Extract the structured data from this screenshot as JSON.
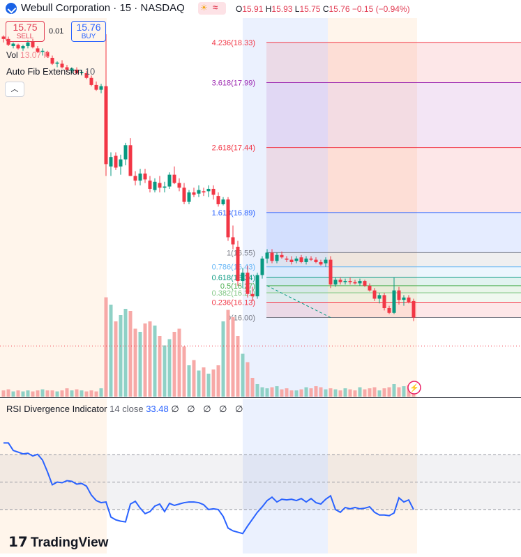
{
  "header": {
    "symbol_title": "Webull Corporation · 15 · NASDAQ",
    "ohlc": {
      "o_label": "O",
      "o_value": "15.91",
      "h_label": "H",
      "h_value": "15.93",
      "l_label": "L",
      "l_value": "15.75",
      "c_label": "C",
      "c_value": "15.76",
      "change": "−0.15 (−0.94%)"
    }
  },
  "trade": {
    "sell_price": "15.75",
    "sell_label": "SELL",
    "spread": "0.01",
    "buy_price": "15.76",
    "buy_label": "BUY"
  },
  "indicators": {
    "vol_label": "Vol",
    "vol_value": "13.07 K",
    "fib_name": "Auto Fib Extension",
    "fib_param": "10",
    "collapse_icon": "chevron-up-icon",
    "rsi_name": "RSI Divergence Indicator",
    "rsi_params": "14 close",
    "rsi_value": "33.48",
    "rsi_extra": "∅ ∅ ∅ ∅ ∅"
  },
  "branding": {
    "text": "TradingView"
  },
  "colors": {
    "up": "#089981",
    "down": "#f23645",
    "rsi": "#2962ff",
    "vol_up": "#8fd1c6",
    "vol_down": "#f7a9a7"
  },
  "chart_data": {
    "type": "candlestick",
    "ylim": [
      15.59,
      18.43
    ],
    "last_price": 15.76,
    "candles": [
      [
        18.38,
        18.39,
        18.33,
        18.36
      ],
      [
        18.36,
        18.38,
        18.3,
        18.31
      ],
      [
        18.3,
        18.33,
        18.28,
        18.32
      ],
      [
        18.31,
        18.32,
        18.27,
        18.28
      ],
      [
        18.28,
        18.31,
        18.26,
        18.3
      ],
      [
        18.3,
        18.35,
        18.28,
        18.33
      ],
      [
        18.34,
        18.36,
        18.28,
        18.29
      ],
      [
        18.28,
        18.3,
        18.24,
        18.25
      ],
      [
        18.25,
        18.28,
        18.22,
        18.26
      ],
      [
        18.25,
        18.26,
        18.2,
        18.21
      ],
      [
        18.2,
        18.22,
        18.14,
        18.15
      ],
      [
        18.15,
        18.17,
        18.12,
        18.16
      ],
      [
        18.15,
        18.18,
        18.11,
        18.12
      ],
      [
        18.12,
        18.14,
        18.08,
        18.1
      ],
      [
        18.09,
        18.12,
        18.07,
        18.11
      ],
      [
        18.1,
        18.12,
        18.06,
        18.07
      ],
      [
        18.07,
        18.1,
        18.05,
        18.08
      ],
      [
        18.07,
        18.09,
        18.02,
        18.03
      ],
      [
        18.03,
        18.05,
        17.96,
        17.97
      ],
      [
        17.97,
        18.0,
        17.92,
        17.93
      ],
      [
        17.93,
        17.98,
        17.9,
        17.96
      ],
      [
        17.96,
        18.4,
        17.2,
        17.3
      ],
      [
        17.28,
        17.4,
        17.2,
        17.36
      ],
      [
        17.37,
        17.4,
        17.25,
        17.27
      ],
      [
        17.28,
        17.38,
        17.21,
        17.34
      ],
      [
        17.34,
        17.48,
        17.29,
        17.46
      ],
      [
        17.46,
        17.52,
        17.2,
        17.2
      ],
      [
        17.2,
        17.24,
        17.12,
        17.16
      ],
      [
        17.16,
        17.26,
        17.12,
        17.22
      ],
      [
        17.22,
        17.26,
        17.14,
        17.17
      ],
      [
        17.16,
        17.2,
        17.06,
        17.09
      ],
      [
        17.08,
        17.18,
        17.06,
        17.15
      ],
      [
        17.14,
        17.2,
        17.06,
        17.1
      ],
      [
        17.1,
        17.15,
        17.06,
        17.11
      ],
      [
        17.11,
        17.23,
        17.09,
        17.21
      ],
      [
        17.21,
        17.28,
        17.13,
        17.14
      ],
      [
        17.14,
        17.18,
        17.07,
        17.1
      ],
      [
        17.1,
        17.14,
        16.96,
        16.98
      ],
      [
        16.98,
        17.08,
        16.96,
        17.06
      ],
      [
        17.06,
        17.1,
        17.02,
        17.04
      ],
      [
        17.05,
        17.12,
        17.02,
        17.08
      ],
      [
        17.07,
        17.1,
        17.03,
        17.06
      ],
      [
        17.07,
        17.12,
        17.02,
        17.09
      ],
      [
        17.09,
        17.12,
        17.0,
        17.04
      ],
      [
        17.03,
        17.06,
        16.94,
        16.96
      ],
      [
        16.96,
        17.02,
        16.95,
        17.0
      ],
      [
        17.0,
        17.02,
        16.65,
        16.68
      ],
      [
        16.68,
        16.78,
        16.58,
        16.62
      ],
      [
        16.6,
        16.65,
        16.27,
        16.31
      ],
      [
        16.31,
        16.42,
        16.25,
        16.38
      ],
      [
        16.38,
        16.44,
        16.17,
        16.2
      ],
      [
        16.2,
        16.26,
        16.14,
        16.18
      ],
      [
        16.18,
        16.38,
        16.16,
        16.36
      ],
      [
        16.36,
        16.52,
        16.33,
        16.5
      ],
      [
        16.5,
        16.58,
        16.46,
        16.55
      ],
      [
        16.55,
        16.58,
        16.46,
        16.48
      ],
      [
        16.48,
        16.55,
        16.46,
        16.53
      ],
      [
        16.53,
        16.56,
        16.5,
        16.51
      ],
      [
        16.5,
        16.52,
        16.47,
        16.49
      ],
      [
        16.49,
        16.52,
        16.45,
        16.47
      ],
      [
        16.48,
        16.52,
        16.46,
        16.5
      ],
      [
        16.51,
        16.53,
        16.46,
        16.47
      ],
      [
        16.47,
        16.52,
        16.45,
        16.5
      ],
      [
        16.5,
        16.52,
        16.48,
        16.49
      ],
      [
        16.49,
        16.51,
        16.46,
        16.47
      ],
      [
        16.47,
        16.49,
        16.44,
        16.45
      ],
      [
        16.46,
        16.51,
        16.43,
        16.49
      ],
      [
        16.49,
        16.52,
        16.25,
        16.28
      ],
      [
        16.28,
        16.34,
        16.26,
        16.32
      ],
      [
        16.32,
        16.34,
        16.28,
        16.3
      ],
      [
        16.3,
        16.33,
        16.28,
        16.31
      ],
      [
        16.31,
        16.34,
        16.28,
        16.3
      ],
      [
        16.3,
        16.32,
        16.28,
        16.29
      ],
      [
        16.29,
        16.33,
        16.27,
        16.31
      ],
      [
        16.31,
        16.32,
        16.26,
        16.27
      ],
      [
        16.27,
        16.29,
        16.22,
        16.23
      ],
      [
        16.23,
        16.25,
        16.14,
        16.16
      ],
      [
        16.16,
        16.21,
        16.12,
        16.19
      ],
      [
        16.19,
        16.21,
        16.06,
        16.08
      ],
      [
        16.08,
        16.1,
        16.03,
        16.04
      ],
      [
        16.04,
        16.34,
        16.03,
        16.23
      ],
      [
        16.23,
        16.26,
        16.11,
        16.15
      ],
      [
        16.15,
        16.19,
        16.1,
        16.17
      ],
      [
        16.17,
        16.19,
        16.12,
        16.13
      ],
      [
        16.14,
        16.16,
        15.97,
        16.0
      ]
    ],
    "volume": [
      6,
      7,
      5,
      6,
      5,
      6,
      5,
      6,
      7,
      6,
      6,
      5,
      6,
      8,
      6,
      7,
      6,
      5,
      6,
      5,
      8,
      95,
      88,
      72,
      78,
      84,
      82,
      65,
      62,
      70,
      72,
      68,
      58,
      49,
      55,
      62,
      65,
      48,
      30,
      35,
      25,
      28,
      22,
      26,
      30,
      72,
      83,
      76,
      58,
      41,
      33,
      18,
      12,
      9,
      8,
      9,
      10,
      7,
      8,
      6,
      6,
      7,
      9,
      8,
      10,
      9,
      7,
      8,
      7,
      6,
      8,
      7,
      6,
      9,
      7,
      8,
      9,
      6,
      8,
      9,
      12,
      9,
      10,
      11,
      14
    ],
    "rsi": {
      "ylim": [
        0,
        100
      ],
      "values": [
        78.5,
        78.5,
        73.0,
        71.8,
        70.5,
        71.0,
        69.0,
        70.2,
        66.0,
        57.5,
        48.0,
        50.0,
        49.5,
        51.0,
        50.5,
        48.5,
        49.0,
        47.0,
        40.5,
        36.5,
        35.0,
        35.5,
        24.5,
        22.5,
        21.5,
        21.0,
        34.0,
        36.0,
        31.0,
        27.0,
        28.5,
        32.5,
        34.0,
        28.5,
        34.5,
        33.0,
        34.0,
        35.0,
        35.5,
        35.5,
        35.0,
        33.5,
        30.0,
        30.5,
        30.0,
        25.0,
        16.5,
        14.5,
        13.5,
        12.5,
        18.0,
        23.0,
        28.0,
        32.0,
        36.5,
        39.0,
        35.5,
        37.5,
        37.0,
        37.5,
        36.5,
        38.0,
        35.5,
        38.0,
        35.0,
        34.0,
        37.5,
        40.0,
        30.0,
        28.0,
        31.5,
        30.5,
        31.5,
        30.5,
        31.0,
        32.0,
        28.0,
        26.0,
        26.0,
        25.5,
        27.5,
        38.5,
        35.5,
        37.0,
        30.0
      ]
    },
    "fib_levels": [
      {
        "label": "4.236(18.33)",
        "ratio": 4.236,
        "value": 18.33,
        "color": "#f23645"
      },
      {
        "label": "3.618(17.99)",
        "ratio": 3.618,
        "value": 17.99,
        "color": "#9c27b0"
      },
      {
        "label": "2.618(17.44)",
        "ratio": 2.618,
        "value": 17.44,
        "color": "#f23645"
      },
      {
        "label": "1.618(16.89)",
        "ratio": 1.618,
        "value": 16.89,
        "color": "#2962ff"
      },
      {
        "label": "1(16.55)",
        "ratio": 1,
        "value": 16.55,
        "color": "#787b86"
      },
      {
        "label": "0.786(16.43)",
        "ratio": 0.786,
        "value": 16.43,
        "color": "#64b5f6"
      },
      {
        "label": "0.618(16.34)",
        "ratio": 0.618,
        "value": 16.34,
        "color": "#089981"
      },
      {
        "label": "0.5(16.27)",
        "ratio": 0.5,
        "value": 16.27,
        "color": "#4caf50"
      },
      {
        "label": "0.382(16.21)",
        "ratio": 0.382,
        "value": 16.21,
        "color": "#81c784"
      },
      {
        "label": "0.236(16.13)",
        "ratio": 0.236,
        "value": 16.13,
        "color": "#f23645"
      },
      {
        "label": "0(16.00)",
        "ratio": 0,
        "value": 16.0,
        "color": "#787b86"
      }
    ]
  }
}
